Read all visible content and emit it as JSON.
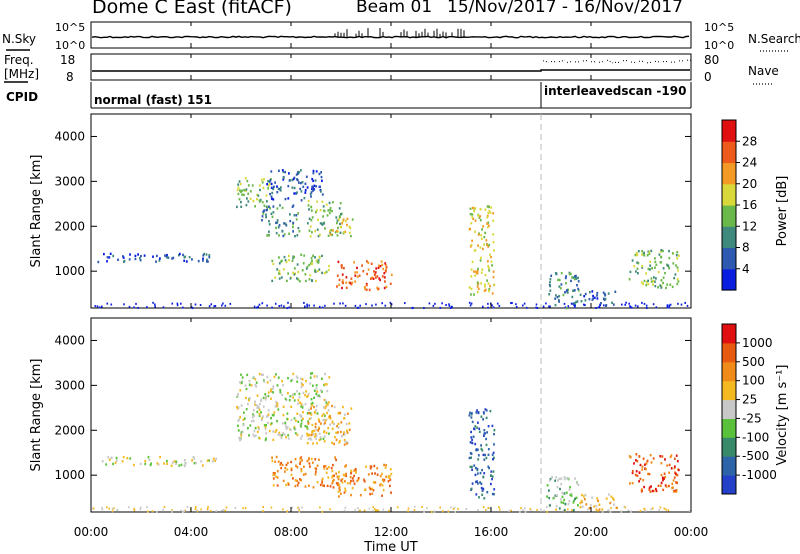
{
  "header": {
    "site": "Dome C East (fitACF)",
    "beam": "Beam 01",
    "date_range": "15/Nov/2017 - 16/Nov/2017"
  },
  "top_panels": {
    "nsky_label": "N.Sky",
    "nsky_ticks": [
      "10^5",
      "10^0"
    ],
    "nsearch_label": "N.Search",
    "nsearch_ticks": [
      "10^5",
      "10^0"
    ],
    "freq_label": "Freq.",
    "freq_unit": "[MHz]",
    "freq_ticks": [
      "18",
      "8"
    ],
    "nave_label": "Nave",
    "nave_ticks": [
      "80",
      "0"
    ],
    "cpid_label": "CPID",
    "cpid_segments": [
      {
        "name": "normal (fast) 151",
        "start_hour": 0
      },
      {
        "name": "interleavedscan -190",
        "start_hour": 18
      }
    ]
  },
  "chart_data": [
    {
      "type": "heatmap",
      "name": "power",
      "ylabel": "Slant Range [km]",
      "xlabel": "Time UT",
      "x_range_hours": [
        0,
        24
      ],
      "ylim": [
        180,
        4500
      ],
      "y_ticks": [
        1000,
        2000,
        3000,
        4000
      ],
      "colorbar_label": "Power [dB]",
      "colorbar_ticks": [
        4,
        8,
        12,
        16,
        20,
        24,
        28
      ],
      "colorbar_colors": [
        "#0a1ee0",
        "#2d59b0",
        "#3f8a7c",
        "#6ab84a",
        "#d8d83a",
        "#f39a26",
        "#ee5a1c",
        "#e01010"
      ],
      "regions": [
        {
          "t0": 0.2,
          "t1": 5.0,
          "r0": 1230,
          "r1": 1430,
          "level": 1
        },
        {
          "t0": 5.8,
          "t1": 7.2,
          "r0": 2450,
          "r1": 3100,
          "level": 3
        },
        {
          "t0": 7.0,
          "t1": 9.3,
          "r0": 2600,
          "r1": 3300,
          "level": 1
        },
        {
          "t0": 6.8,
          "t1": 8.3,
          "r0": 1800,
          "r1": 2500,
          "level": 2
        },
        {
          "t0": 7.2,
          "t1": 9.5,
          "r0": 800,
          "r1": 1400,
          "level": 3
        },
        {
          "t0": 8.6,
          "t1": 10.0,
          "r0": 1800,
          "r1": 2600,
          "level": 3
        },
        {
          "t0": 9.5,
          "t1": 10.5,
          "r0": 1800,
          "r1": 2200,
          "level": 4
        },
        {
          "t0": 9.8,
          "t1": 12.0,
          "r0": 600,
          "r1": 1250,
          "level": 6
        },
        {
          "t0": 15.1,
          "t1": 16.1,
          "r0": 500,
          "r1": 2500,
          "level": 4
        },
        {
          "t0": 18.2,
          "t1": 19.5,
          "r0": 200,
          "r1": 1000,
          "level": 2
        },
        {
          "t0": 19.5,
          "t1": 21.0,
          "r0": 250,
          "r1": 600,
          "level": 1
        },
        {
          "t0": 21.5,
          "t1": 23.5,
          "r0": 650,
          "r1": 1500,
          "level": 3
        }
      ]
    },
    {
      "type": "heatmap",
      "name": "velocity",
      "ylabel": "Slant Range [km]",
      "xlabel": "Time UT",
      "x_range_hours": [
        0,
        24
      ],
      "ylim": [
        180,
        4500
      ],
      "y_ticks": [
        1000,
        2000,
        3000,
        4000
      ],
      "colorbar_label": "Velocity [m s⁻¹]",
      "colorbar_ticks": [
        "1000",
        "500",
        "100",
        "25",
        "-25",
        "-100",
        "-500",
        "-1000"
      ],
      "colorbar_colors": [
        "#2440c8",
        "#2d63a8",
        "#398a6a",
        "#5ac23a",
        "#c8c8c8",
        "#f4b820",
        "#f08a18",
        "#e85a10",
        "#e01010"
      ],
      "regions": [
        {
          "t0": 0.2,
          "t1": 5.0,
          "r0": 1230,
          "r1": 1430,
          "level": 4
        },
        {
          "t0": 5.8,
          "t1": 9.5,
          "r0": 1800,
          "r1": 3300,
          "level": 4
        },
        {
          "t0": 7.2,
          "t1": 9.8,
          "r0": 750,
          "r1": 1450,
          "level": 6
        },
        {
          "t0": 8.6,
          "t1": 10.4,
          "r0": 1700,
          "r1": 2600,
          "level": 5
        },
        {
          "t0": 9.8,
          "t1": 12.0,
          "r0": 550,
          "r1": 1300,
          "level": 6
        },
        {
          "t0": 15.1,
          "t1": 16.1,
          "r0": 500,
          "r1": 2500,
          "level": 1
        },
        {
          "t0": 18.2,
          "t1": 19.5,
          "r0": 200,
          "r1": 1000,
          "level": 3
        },
        {
          "t0": 19.5,
          "t1": 21.0,
          "r0": 250,
          "r1": 600,
          "level": 5
        },
        {
          "t0": 21.5,
          "t1": 23.5,
          "r0": 650,
          "r1": 1500,
          "level": 7
        }
      ]
    }
  ],
  "x_axis": {
    "tick_labels": [
      "00:00",
      "04:00",
      "08:00",
      "12:00",
      "16:00",
      "20:00",
      "00:00"
    ],
    "label": "Time UT"
  }
}
